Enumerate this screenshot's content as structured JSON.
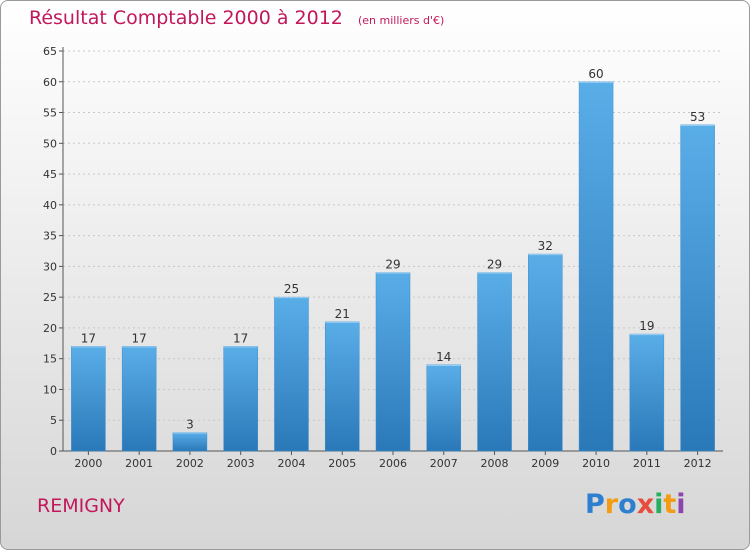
{
  "chart_data": {
    "type": "bar",
    "title": "Résultat Comptable 2000 à 2012",
    "subtitle": "(en milliers d'€)",
    "categories": [
      "2000",
      "2001",
      "2002",
      "2003",
      "2004",
      "2005",
      "2006",
      "2007",
      "2008",
      "2009",
      "2010",
      "2011",
      "2012"
    ],
    "values": [
      17,
      17,
      3,
      17,
      25,
      21,
      29,
      14,
      29,
      32,
      60,
      19,
      53
    ],
    "ylim": [
      0,
      65
    ],
    "yticks": [
      0,
      5,
      10,
      15,
      20,
      25,
      30,
      35,
      40,
      45,
      50,
      55,
      60,
      65
    ],
    "xlabel": "",
    "ylabel": "",
    "grid": true,
    "bar_color": "#4fa3e0"
  },
  "commune": "REMIGNY",
  "logo": {
    "letters": [
      "P",
      "r",
      "o",
      "x",
      "i",
      "t",
      "i"
    ],
    "colors": [
      "#2e7fd0",
      "#f39c12",
      "#2e7fd0",
      "#e74c3c",
      "#27ae60",
      "#f39c12",
      "#8e44ad"
    ]
  }
}
